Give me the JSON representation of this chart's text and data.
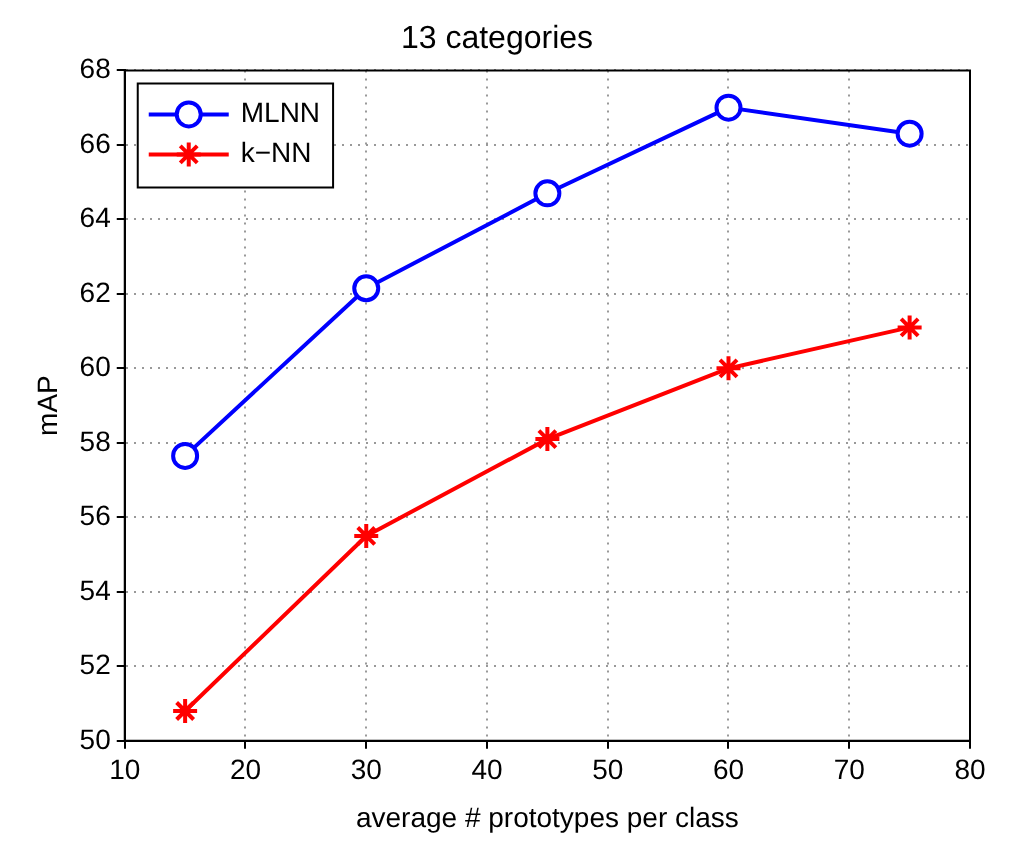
{
  "chart_data": {
    "type": "line",
    "title": "13 categories",
    "xlabel": "average # prototypes per class",
    "ylabel": "mAP",
    "x": [
      15,
      30,
      45,
      60,
      75
    ],
    "series": [
      {
        "name": "MLNN",
        "color": "#0000ff",
        "marker": "circle",
        "values": [
          57.65,
          62.15,
          64.7,
          67.0,
          66.3
        ]
      },
      {
        "name": "k−NN",
        "color": "#ff0000",
        "marker": "cross",
        "values": [
          50.8,
          55.5,
          58.1,
          60.0,
          61.1
        ]
      }
    ],
    "xlim": [
      10,
      80
    ],
    "xticks": [
      10,
      20,
      30,
      40,
      50,
      60,
      70,
      80
    ],
    "ylim": [
      50,
      68
    ],
    "yticks": [
      50,
      52,
      54,
      56,
      58,
      60,
      62,
      64,
      66,
      68
    ],
    "grid": true,
    "legend": "top left",
    "line_style": "solid"
  }
}
